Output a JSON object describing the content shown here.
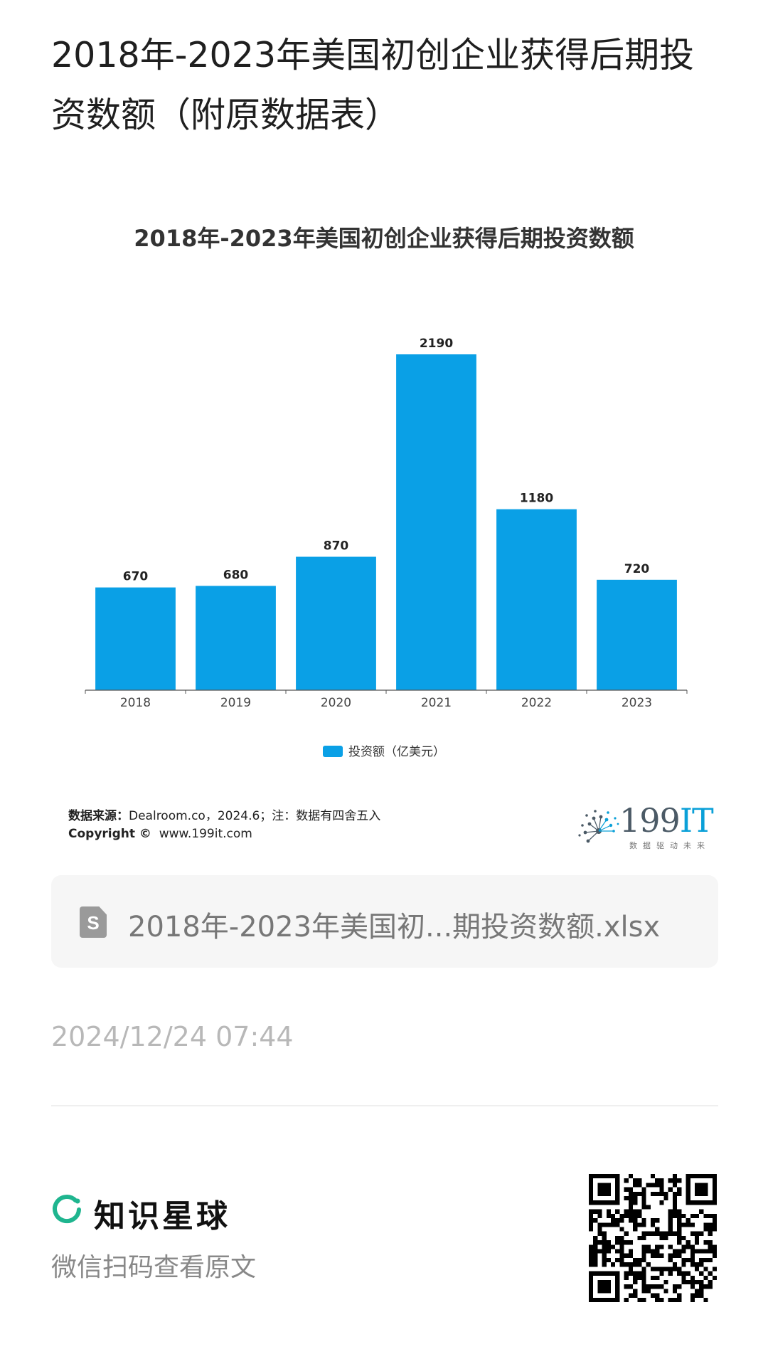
{
  "post": {
    "title": "2018年-2023年美国初创企业获得后期投资数额（附原数据表）",
    "time": "2024/12/24 07:44"
  },
  "chart_data": {
    "type": "bar",
    "title": "2018年-2023年美国初创企业获得后期投资数额",
    "categories": [
      "2018",
      "2019",
      "2020",
      "2021",
      "2022",
      "2023"
    ],
    "series": [
      {
        "name": "投资额（亿美元）",
        "values": [
          670,
          680,
          870,
          2190,
          1180,
          720
        ]
      }
    ],
    "value_labels": [
      "670",
      "680",
      "870",
      "2190",
      "1180",
      "720"
    ],
    "ylim": [
      0,
      2190
    ],
    "grid": false,
    "legend_position": "bottom-center",
    "bar_color": "#0aa0e6"
  },
  "chart_footer": {
    "source_label": "数据来源：",
    "source_text": "Dealroom.co，2024.6；注：数据有四舍五入",
    "copyright_label": "Copyright ©",
    "copyright_text": "www.199it.com",
    "brand_main": "199",
    "brand_accent": "IT",
    "brand_tagline": "数据驱动未来"
  },
  "attachment": {
    "icon": "spreadsheet-file-icon",
    "icon_letter": "S",
    "filename": "2018年-2023年美国初...期投资数额.xlsx"
  },
  "footer": {
    "platform_name": "知识星球",
    "scan_hint": "微信扫码查看原文",
    "logo_color": "#1fb58f",
    "qr_icon": "qr-code-icon"
  }
}
